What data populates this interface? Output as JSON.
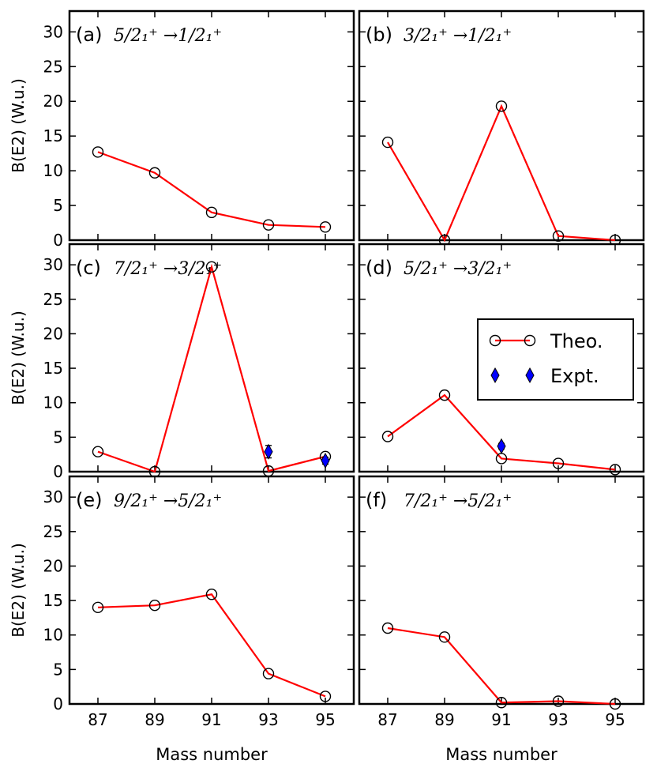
{
  "chart_data": {
    "type": "line",
    "ylabel": "B(E2) (W.u.)",
    "xlabel": "Mass number",
    "x": [
      87,
      89,
      91,
      93,
      95
    ],
    "xlim": [
      86,
      96
    ],
    "ylim": [
      0,
      33
    ],
    "xticks": [
      "87",
      "89",
      "91",
      "93",
      "95"
    ],
    "yticks": [
      "0",
      "5",
      "10",
      "15",
      "20",
      "25",
      "30"
    ],
    "legend": {
      "placement": "panel (d), right",
      "entries": [
        {
          "name": "Theo.",
          "color": "#ff0000",
          "marker": "open-circle"
        },
        {
          "name": "Expt.",
          "color": "#0000ff",
          "marker": "diamond"
        }
      ]
    },
    "panels": [
      {
        "label": "(a)",
        "transition": "5/2₁⁺ →1/2₁⁺",
        "theo": [
          12.7,
          9.7,
          4.0,
          2.2,
          1.9
        ],
        "expt": []
      },
      {
        "label": "(b)",
        "transition": "3/2₁⁺ →1/2₁⁺",
        "theo": [
          14.1,
          0.0,
          19.3,
          0.6,
          0.0
        ],
        "expt": []
      },
      {
        "label": "(c)",
        "transition": "7/2₁⁺   →3/2₁⁺",
        "theo": [
          2.9,
          0.0,
          29.7,
          0.1,
          2.2
        ],
        "expt": [
          {
            "x": 93,
            "y": 2.9,
            "err": 0.9
          },
          {
            "x": 95,
            "y": 1.6,
            "err": 0.5
          }
        ]
      },
      {
        "label": "(d)",
        "transition": "5/2₁⁺ →3/2₁⁺",
        "theo": [
          5.1,
          11.1,
          1.9,
          1.2,
          0.3
        ],
        "expt": [
          {
            "x": 91,
            "y": 3.7,
            "err": 0.4
          }
        ]
      },
      {
        "label": "(e)",
        "transition": "9/2₁⁺ →5/2₁⁺",
        "theo": [
          14.0,
          14.3,
          15.9,
          4.4,
          1.1
        ],
        "expt": []
      },
      {
        "label": "(f)",
        "transition": "7/2₁⁺ →5/2₁⁺",
        "theo": [
          11.0,
          9.7,
          0.2,
          0.4,
          0.0
        ],
        "expt": []
      }
    ]
  }
}
